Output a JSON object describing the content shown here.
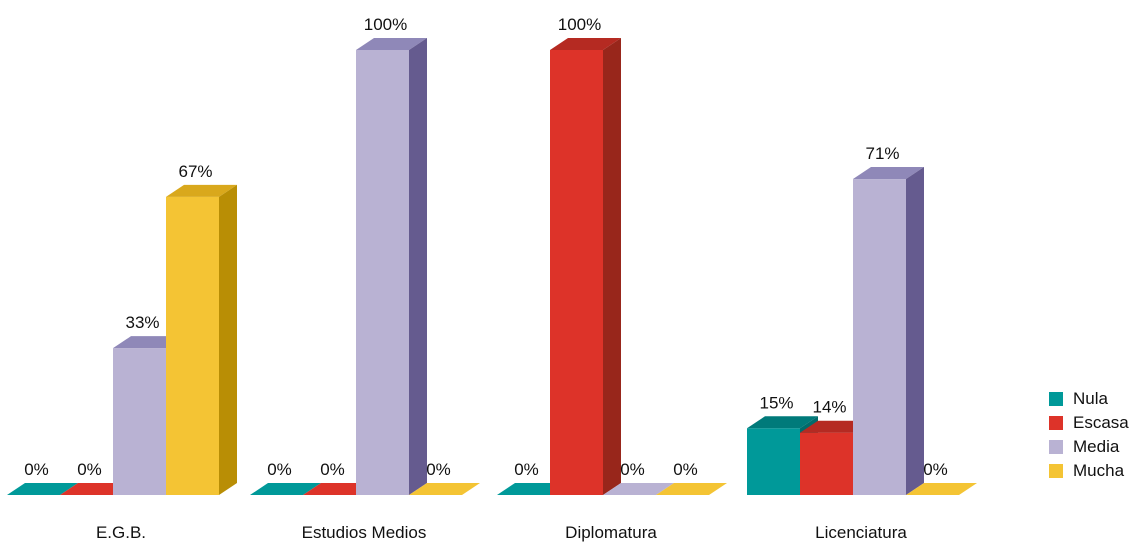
{
  "chart_data": {
    "type": "bar",
    "categories": [
      "E.G.B.",
      "Estudios Medios",
      "Diplomatura",
      "Licenciatura"
    ],
    "series": [
      {
        "name": "Nula",
        "values": [
          0,
          0,
          0,
          15
        ],
        "labels": [
          "0%",
          "0%",
          "0%",
          "15%"
        ]
      },
      {
        "name": "Escasa",
        "values": [
          0,
          0,
          100,
          14
        ],
        "labels": [
          "0%",
          "0%",
          "100%",
          "14%"
        ]
      },
      {
        "name": "Media",
        "values": [
          33,
          100,
          0,
          71
        ],
        "labels": [
          "33%",
          "100%",
          "0%",
          "71%"
        ]
      },
      {
        "name": "Mucha",
        "values": [
          67,
          0,
          0,
          0
        ],
        "labels": [
          "67%",
          "0%",
          "0%",
          "0%"
        ]
      }
    ],
    "ylim": [
      0,
      100
    ],
    "grid": false,
    "legend_position": "right",
    "colors": {
      "Nula": {
        "front": "#009999",
        "top": "#007a7a",
        "side": "#006b6b"
      },
      "Escasa": {
        "front": "#dd3329",
        "top": "#b52a22",
        "side": "#98261b"
      },
      "Media": {
        "front": "#b9b2d3",
        "top": "#8f88b8",
        "side": "#655b8f"
      },
      "Mucha": {
        "front": "#f4c434",
        "top": "#d9a81c",
        "side": "#b98e05"
      }
    }
  }
}
